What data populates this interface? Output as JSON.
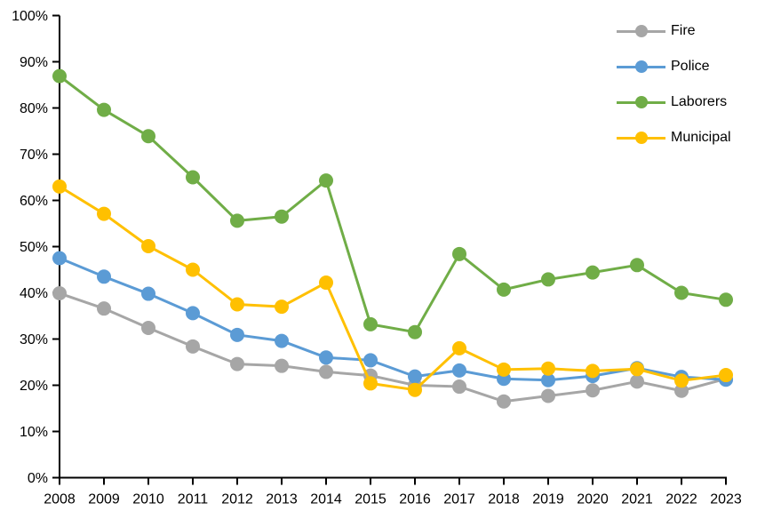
{
  "chart_data": {
    "type": "line",
    "categories": [
      "2008",
      "2009",
      "2010",
      "2011",
      "2012",
      "2013",
      "2014",
      "2015",
      "2016",
      "2017",
      "2018",
      "2019",
      "2020",
      "2021",
      "2022",
      "2023"
    ],
    "series": [
      {
        "name": "Fire",
        "color": "#A6A6A6",
        "values": [
          39.9,
          36.6,
          32.4,
          28.4,
          24.6,
          24.2,
          22.9,
          22.1,
          20.0,
          19.7,
          16.5,
          17.7,
          18.9,
          20.8,
          18.8,
          21.4
        ]
      },
      {
        "name": "Police",
        "color": "#5B9BD5",
        "values": [
          47.5,
          43.5,
          39.8,
          35.6,
          30.9,
          29.6,
          26.0,
          25.4,
          21.9,
          23.2,
          21.4,
          21.1,
          22.0,
          23.7,
          21.8,
          21.2
        ]
      },
      {
        "name": "Laborers",
        "color": "#70AD47",
        "values": [
          86.9,
          79.6,
          73.9,
          65.0,
          55.6,
          56.5,
          64.3,
          33.2,
          31.5,
          48.4,
          40.7,
          42.9,
          44.4,
          46.0,
          40.0,
          38.5
        ]
      },
      {
        "name": "Municipal",
        "color": "#FFC000",
        "values": [
          63.0,
          57.1,
          50.1,
          45.0,
          37.5,
          37.0,
          42.2,
          20.4,
          19.0,
          28.0,
          23.4,
          23.6,
          23.1,
          23.5,
          21.0,
          22.2
        ]
      }
    ],
    "ylim": [
      0,
      100
    ],
    "y_tick_step": 10,
    "y_tick_labels": [
      "0%",
      "10%",
      "20%",
      "30%",
      "40%",
      "50%",
      "60%",
      "70%",
      "80%",
      "90%",
      "100%"
    ],
    "grid": false,
    "legend_position": "top-right",
    "axis_color": "#000000",
    "background": "#FFFFFF",
    "marker": "circle"
  }
}
